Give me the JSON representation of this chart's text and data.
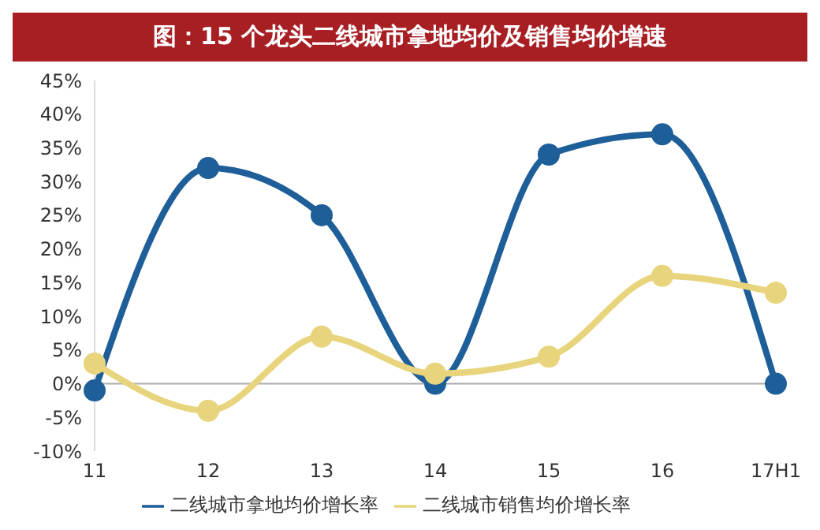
{
  "chart_data": {
    "type": "line",
    "title": "图：15 个龙头二线城市拿地均价及销售均价增速",
    "categories": [
      "11",
      "12",
      "13",
      "14",
      "15",
      "16",
      "17H1"
    ],
    "series": [
      {
        "name": "二线城市拿地均价增长率",
        "color": "#1f5f99",
        "values": [
          -1,
          32,
          25,
          0,
          34,
          37,
          0
        ]
      },
      {
        "name": "二线城市销售均价增长率",
        "color": "#e8d47c",
        "values": [
          3,
          -4,
          7,
          1.5,
          4,
          16,
          13.5
        ]
      }
    ],
    "ylim": [
      -10,
      45
    ],
    "yticks": [
      {
        "value": -10,
        "label": "-10%"
      },
      {
        "value": -5,
        "label": "-5%"
      },
      {
        "value": 0,
        "label": "0%"
      },
      {
        "value": 5,
        "label": "5%"
      },
      {
        "value": 10,
        "label": "10%"
      },
      {
        "value": 15,
        "label": "15%"
      },
      {
        "value": 20,
        "label": "20%"
      },
      {
        "value": 25,
        "label": "25%"
      },
      {
        "value": 30,
        "label": "30%"
      },
      {
        "value": 35,
        "label": "35%"
      },
      {
        "value": 40,
        "label": "40%"
      },
      {
        "value": 45,
        "label": "45%"
      }
    ],
    "ref_lines": [
      {
        "axis": "y",
        "value": 0,
        "color": "#aaaaaa"
      }
    ],
    "grid": false,
    "legend": "bottom",
    "marker": "circle",
    "line_style": "solid"
  }
}
